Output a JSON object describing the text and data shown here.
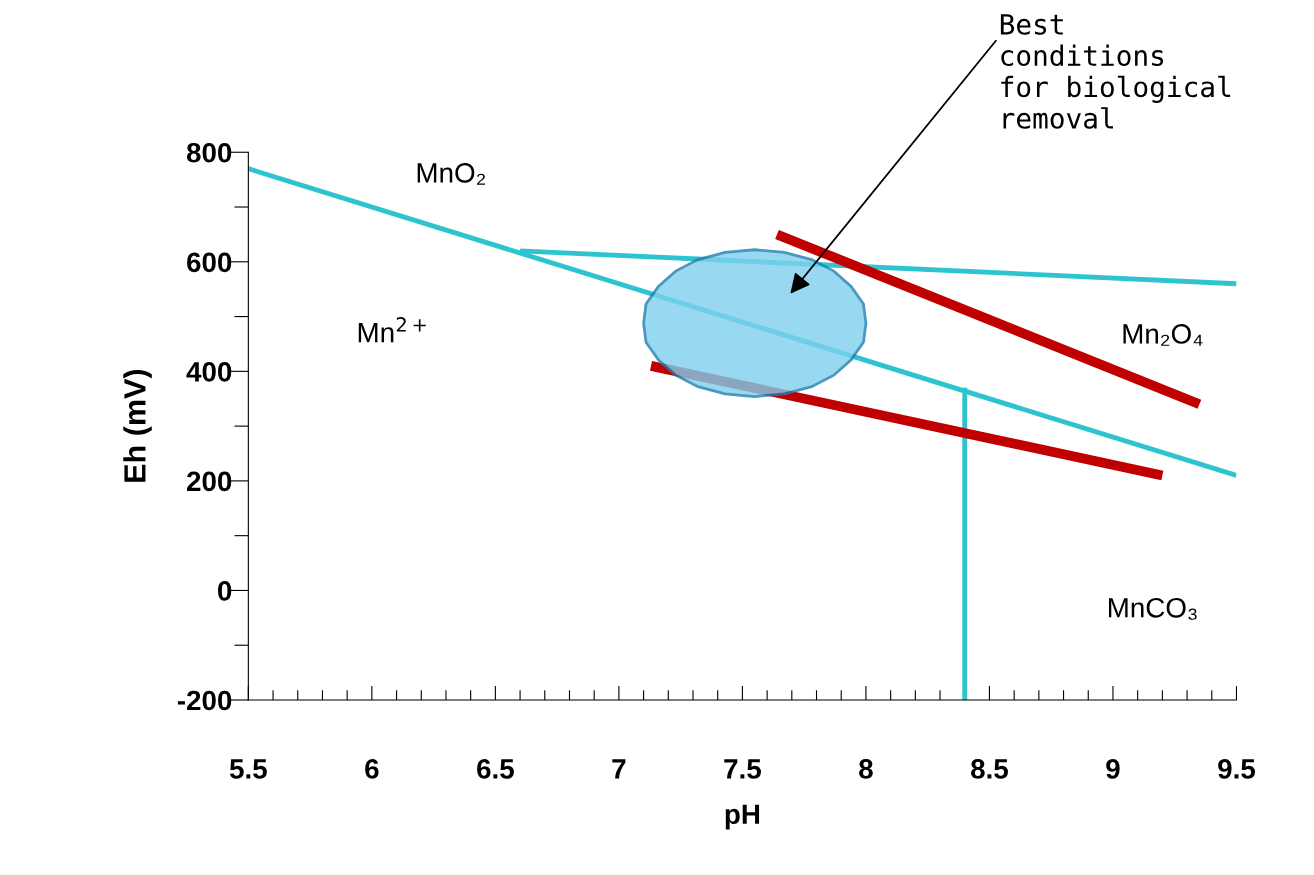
{
  "chart_data": {
    "type": "line",
    "xlabel": "pH",
    "ylabel": "Eh (mV)",
    "xlim": [
      5.5,
      9.5
    ],
    "xticks": [
      5.5,
      {
        "value": 5.6,
        "label": null
      },
      {
        "value": 5.7,
        "label": null
      },
      {
        "value": 5.8,
        "label": null
      },
      {
        "value": 5.9,
        "label": null
      },
      6,
      {
        "value": 6.1,
        "label": null
      },
      {
        "value": 6.2,
        "label": null
      },
      {
        "value": 6.3,
        "label": null
      },
      {
        "value": 6.4,
        "label": null
      },
      6.5,
      {
        "value": 6.6,
        "label": null
      },
      {
        "value": 6.7,
        "label": null
      },
      {
        "value": 6.8,
        "label": null
      },
      {
        "value": 6.9,
        "label": null
      },
      7,
      {
        "value": 7.1,
        "label": null
      },
      {
        "value": 7.2,
        "label": null
      },
      {
        "value": 7.3,
        "label": null
      },
      {
        "value": 7.4,
        "label": null
      },
      7.5,
      {
        "value": 7.6,
        "label": null
      },
      {
        "value": 7.7,
        "label": null
      },
      {
        "value": 7.8,
        "label": null
      },
      {
        "value": 7.9,
        "label": null
      },
      8,
      {
        "value": 8.1,
        "label": null
      },
      {
        "value": 8.2,
        "label": null
      },
      {
        "value": 8.3,
        "label": null
      },
      {
        "value": 8.4,
        "label": null
      },
      8.5,
      {
        "value": 8.6,
        "label": null
      },
      {
        "value": 8.7,
        "label": null
      },
      {
        "value": 8.8,
        "label": null
      },
      {
        "value": 8.9,
        "label": null
      },
      9,
      {
        "value": 9.1,
        "label": null
      },
      {
        "value": 9.2,
        "label": null
      },
      {
        "value": 9.3,
        "label": null
      },
      {
        "value": 9.4,
        "label": null
      },
      9.5
    ],
    "ylim": [
      -200,
      800
    ],
    "yticks": [
      -200,
      {
        "value": -100,
        "label": null
      },
      0,
      {
        "value": 100,
        "label": null
      },
      200,
      {
        "value": 300,
        "label": null
      },
      400,
      {
        "value": 500,
        "label": null
      },
      600,
      {
        "value": 700,
        "label": null
      },
      800
    ],
    "grid": false,
    "marker": "none",
    "line_style": "solid",
    "series": [
      {
        "color": "#7fd0ee",
        "type": "area",
        "x": [
          8.0,
          7.99,
          7.94,
          7.87,
          7.78,
          7.67,
          7.55,
          7.43,
          7.32,
          7.23,
          7.16,
          7.11,
          7.1,
          7.11,
          7.16,
          7.23,
          7.32,
          7.43,
          7.55,
          7.67,
          7.78,
          7.87,
          7.94,
          7.99,
          8.0
        ],
        "values": [
          488,
          523,
          555,
          583,
          604,
          617,
          622,
          617,
          604,
          583,
          555,
          523,
          488,
          453,
          421,
          393,
          372,
          359,
          354,
          359,
          372,
          393,
          421,
          453,
          488
        ]
      },
      {
        "color": "#2ec4cf",
        "x": [
          5.5,
          9.5
        ],
        "values": [
          770,
          210
        ]
      },
      {
        "color": "#2ec4cf",
        "x": [
          6.6,
          9.5
        ],
        "values": [
          620,
          560
        ]
      },
      {
        "color": "#2ec4cf",
        "x": [
          8.4,
          8.4
        ],
        "values": [
          -200,
          370
        ]
      },
      {
        "color": "#c00000",
        "x": [
          7.64,
          9.35
        ],
        "values": [
          650,
          340
        ]
      },
      {
        "color": "#c00000",
        "x": [
          7.13,
          9.2
        ],
        "values": [
          410,
          210
        ]
      }
    ],
    "annotations": [
      "MnO₂",
      "Mn$^{2+}$",
      "Mn₂O₄",
      "MnCO₃",
      "Best\nconditions\nfor biological\nremoval"
    ]
  }
}
